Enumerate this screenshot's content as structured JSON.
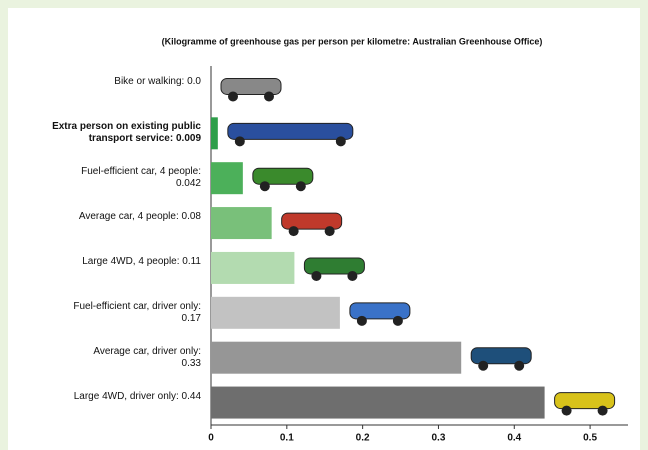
{
  "chart_data": {
    "type": "hbar",
    "title": "(Kilogramme of greenhouse gas per person per kilometre: Australian Greenhouse Office)",
    "categories": [
      "Bike or walking: 0.0",
      "Extra person on existing public transport service: 0.009",
      "Fuel-efficient car, 4 people: 0.042",
      "Average car, 4 people: 0.08",
      "Large 4WD, 4 people: 0.11",
      "Fuel-efficient car, driver only: 0.17",
      "Average car, driver only: 0.33",
      "Large 4WD, driver only: 0.44"
    ],
    "values": [
      0,
      0.009,
      0.042,
      0.08,
      0.11,
      0.17,
      0.33,
      0.44
    ],
    "colors": [
      "#2e9e4a",
      "#2e9e4a",
      "#4cb05a",
      "#79c07a",
      "#b3dbb0",
      "#c2c2c2",
      "#969696",
      "#6e6e6e"
    ],
    "xlim": [
      0,
      0.55
    ],
    "xticks": [
      0,
      0.1,
      0.2,
      0.3,
      0.4,
      0.5
    ]
  }
}
